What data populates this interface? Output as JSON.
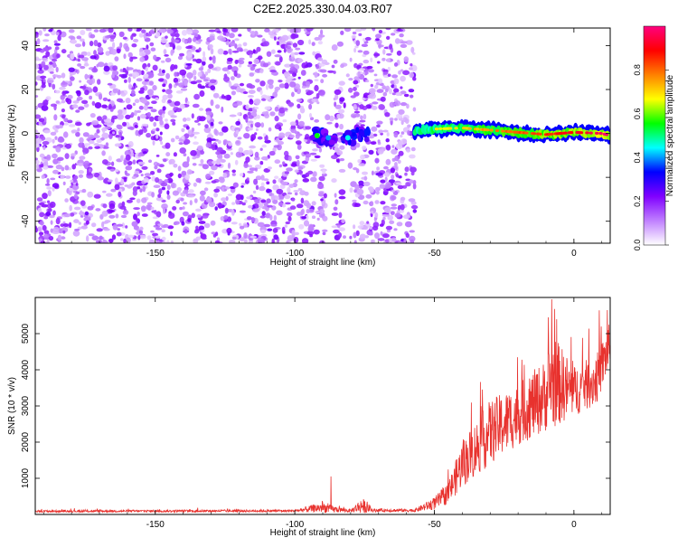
{
  "title": "C2E2.2025.330.04.03.R07",
  "chart_data": [
    {
      "type": "heatmap",
      "xlabel": "Height of straight line (km)",
      "ylabel": "Frequency (Hz)",
      "xlim": [
        -193,
        13
      ],
      "ylim": [
        -50,
        48
      ],
      "xticks": [
        -150,
        -100,
        -50,
        0
      ],
      "yticks": [
        -40,
        -20,
        0,
        20,
        40
      ],
      "colorbar": {
        "label": "Normalized spectral amplitude",
        "range": [
          0.0,
          1.0
        ],
        "ticks": [
          "0.0",
          "0.2",
          "0.4",
          "0.6",
          "0.8"
        ],
        "colors": [
          "#ffffff",
          "#c080ff",
          "#8000ff",
          "#0000ff",
          "#00ffff",
          "#00ff00",
          "#ffff00",
          "#ff8000",
          "#ff0000",
          "#ff0080"
        ]
      },
      "noise_region": [
        -193,
        -57
      ],
      "signal_track": [
        {
          "x": -57,
          "y": 1.0
        },
        {
          "x": -50,
          "y": 2.0
        },
        {
          "x": -40,
          "y": 2.5
        },
        {
          "x": -30,
          "y": 1.5
        },
        {
          "x": -20,
          "y": 0.5
        },
        {
          "x": -10,
          "y": -0.5
        },
        {
          "x": 0,
          "y": 0.5
        },
        {
          "x": 10,
          "y": 0.0
        },
        {
          "x": 13,
          "y": -1.0
        }
      ],
      "signal_blobs": [
        {
          "x": -92,
          "y": -1,
          "amplitude": 0.55
        },
        {
          "x": -88,
          "y": -2,
          "amplitude": 0.4
        },
        {
          "x": -81,
          "y": -2,
          "amplitude": 0.45
        },
        {
          "x": -76,
          "y": 0,
          "amplitude": 0.3
        }
      ]
    },
    {
      "type": "line",
      "xlabel": "Height of straight line (km)",
      "ylabel": "SNR (10 * v/v)",
      "xlim": [
        -193,
        13
      ],
      "ylim": [
        0,
        6000
      ],
      "xticks": [
        -150,
        -100,
        -50,
        0
      ],
      "yticks": [
        1000,
        2000,
        3000,
        4000,
        5000
      ],
      "color": "#e8322e",
      "envelope": [
        {
          "x": -193,
          "base": 80,
          "amp": 60
        },
        {
          "x": -100,
          "base": 90,
          "amp": 70
        },
        {
          "x": -90,
          "base": 150,
          "amp": 300
        },
        {
          "x": -87,
          "base": 120,
          "amp": 200
        },
        {
          "x": -80,
          "base": 90,
          "amp": 80
        },
        {
          "x": -76,
          "base": 180,
          "amp": 450
        },
        {
          "x": -72,
          "base": 100,
          "amp": 90
        },
        {
          "x": -57,
          "base": 100,
          "amp": 90
        },
        {
          "x": -50,
          "base": 250,
          "amp": 350
        },
        {
          "x": -45,
          "base": 500,
          "amp": 600
        },
        {
          "x": -40,
          "base": 1200,
          "amp": 1300
        },
        {
          "x": -30,
          "base": 2000,
          "amp": 1800
        },
        {
          "x": -20,
          "base": 2500,
          "amp": 1700
        },
        {
          "x": -10,
          "base": 3000,
          "amp": 2000
        },
        {
          "x": -8,
          "base": 3300,
          "amp": 2700
        },
        {
          "x": 0,
          "base": 3200,
          "amp": 1400
        },
        {
          "x": 8,
          "base": 3500,
          "amp": 1400
        },
        {
          "x": 13,
          "base": 4500,
          "amp": 1300
        }
      ],
      "peaks": [
        {
          "x": -8,
          "y": 5950
        },
        {
          "x": 12,
          "y": 5650
        },
        {
          "x": -87,
          "y": 1050
        }
      ]
    }
  ]
}
